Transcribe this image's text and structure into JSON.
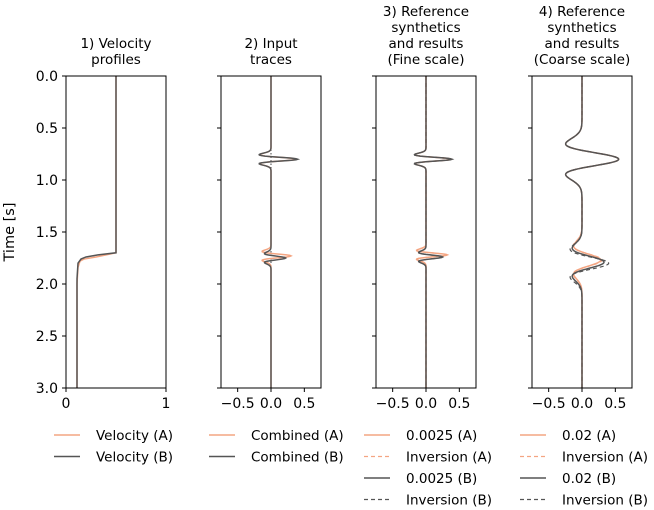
{
  "figure": {
    "ylabel": "Time [s]",
    "yticks": [
      "0.0",
      "0.5",
      "1.0",
      "1.5",
      "2.0",
      "2.5",
      "3.0"
    ]
  },
  "colors": {
    "orange": "#f4a582",
    "gray": "#555555",
    "darkred": "#8b3a3a",
    "axis": "#000000"
  },
  "chart_data": [
    {
      "type": "line",
      "title": [
        "1) Velocity",
        "profiles"
      ],
      "xlim": [
        0,
        1
      ],
      "ylim": [
        3.0,
        0.0
      ],
      "xticks": [
        "0",
        "1"
      ],
      "xtick_values": [
        0,
        1
      ],
      "series": [
        {
          "name": "Velocity (A)",
          "style": "solid-orange",
          "points": [
            [
              0.5,
              0.0
            ],
            [
              0.5,
              1.7
            ],
            [
              0.3,
              1.74
            ],
            [
              0.18,
              1.76
            ],
            [
              0.14,
              1.78
            ],
            [
              0.12,
              1.84
            ],
            [
              0.11,
              2.0
            ],
            [
              0.11,
              3.0
            ]
          ]
        },
        {
          "name": "Velocity (B)",
          "style": "solid-gray",
          "points": [
            [
              0.5,
              0.0
            ],
            [
              0.5,
              1.7
            ],
            [
              0.32,
              1.72
            ],
            [
              0.2,
              1.74
            ],
            [
              0.15,
              1.76
            ],
            [
              0.12,
              1.8
            ],
            [
              0.11,
              1.95
            ],
            [
              0.11,
              3.0
            ]
          ]
        }
      ],
      "legend": [
        "Velocity (A)",
        "Velocity (B)"
      ]
    },
    {
      "type": "line",
      "title": [
        "2) Input",
        "traces"
      ],
      "xlim": [
        -0.75,
        0.75
      ],
      "ylim": [
        3.0,
        0.0
      ],
      "xticks": [
        "−0.5",
        "0.0",
        "0.5"
      ],
      "xtick_values": [
        -0.5,
        0.0,
        0.5
      ],
      "vline": {
        "x": 0.0,
        "style": "dotted"
      },
      "series": [
        {
          "name": "Combined (A)",
          "style": "solid-orange",
          "wavelets": [
            [
              0.8,
              0.38,
              0.035
            ],
            [
              1.73,
              0.3,
              0.035
            ]
          ]
        },
        {
          "name": "Combined (B)",
          "style": "solid-gray",
          "wavelets": [
            [
              0.8,
              0.4,
              0.035
            ],
            [
              1.75,
              0.22,
              0.035
            ]
          ]
        }
      ],
      "legend": [
        "Combined (A)",
        "Combined (B)"
      ]
    },
    {
      "type": "line",
      "title": [
        "3) Reference",
        "synthetics",
        "and results",
        "(Fine scale)"
      ],
      "xlim": [
        -0.75,
        0.75
      ],
      "ylim": [
        3.0,
        0.0
      ],
      "xticks": [
        "−0.5",
        "0.0",
        "0.5"
      ],
      "xtick_values": [
        -0.5,
        0.0,
        0.5
      ],
      "series": [
        {
          "name": "0.0025 (A)",
          "style": "solid-orange",
          "wavelets": [
            [
              0.8,
              0.38,
              0.035
            ],
            [
              1.72,
              0.32,
              0.035
            ]
          ]
        },
        {
          "name": "Inversion (A)",
          "style": "dashed-orange",
          "wavelets": [
            [
              0.8,
              0.38,
              0.035
            ],
            [
              1.72,
              0.3,
              0.035
            ]
          ]
        },
        {
          "name": "0.0025 (B)",
          "style": "solid-gray",
          "wavelets": [
            [
              0.8,
              0.39,
              0.035
            ],
            [
              1.74,
              0.25,
              0.035
            ]
          ]
        },
        {
          "name": "Inversion (B)",
          "style": "dashed-gray",
          "wavelets": [
            [
              0.8,
              0.39,
              0.035
            ],
            [
              1.74,
              0.24,
              0.035
            ]
          ]
        }
      ],
      "legend": [
        "0.0025 (A)",
        "Inversion (A)",
        "0.0025 (B)",
        "Inversion (B)"
      ]
    },
    {
      "type": "line",
      "title": [
        "4) Reference",
        "synthetics",
        "and results",
        "(Coarse scale)"
      ],
      "xlim": [
        -0.75,
        0.75
      ],
      "ylim": [
        3.0,
        0.0
      ],
      "xticks": [
        "−0.5",
        "0.0",
        "0.5"
      ],
      "xtick_values": [
        -0.5,
        0.0,
        0.5
      ],
      "series": [
        {
          "name": "0.02 (A)",
          "style": "solid-orange",
          "wavelets": [
            [
              0.8,
              0.55,
              0.12
            ],
            [
              1.77,
              0.28,
              0.11
            ]
          ]
        },
        {
          "name": "Inversion (A)",
          "style": "dashed-orange",
          "wavelets": [
            [
              0.8,
              0.55,
              0.12
            ],
            [
              1.77,
              0.3,
              0.11
            ]
          ]
        },
        {
          "name": "0.02 (B)",
          "style": "solid-gray",
          "wavelets": [
            [
              0.8,
              0.55,
              0.12
            ],
            [
              1.79,
              0.33,
              0.11
            ]
          ]
        },
        {
          "name": "Inversion (B)",
          "style": "dashed-gray",
          "wavelets": [
            [
              0.8,
              0.55,
              0.12
            ],
            [
              1.8,
              0.4,
              0.11
            ]
          ]
        }
      ],
      "legend": [
        "0.02 (A)",
        "Inversion (A)",
        "0.02 (B)",
        "Inversion (B)"
      ]
    }
  ]
}
